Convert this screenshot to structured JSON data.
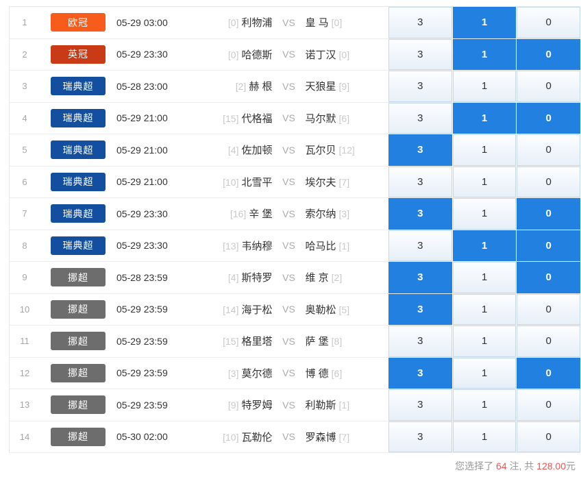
{
  "pick_labels": [
    "3",
    "1",
    "0"
  ],
  "labels": {
    "vs": "VS"
  },
  "colors": {
    "selected_cell": "#2280e1",
    "unselected_cell_border": "#c6d9ec",
    "summary_highlight": "#f05353",
    "league_ouguan": "#f85c1d",
    "league_yingguan": "#c93a17",
    "league_ruidianchao": "#134f9e",
    "league_nuochao": "#6d6d6d"
  },
  "summary": {
    "prefix": "您选择了",
    "bets": "64",
    "mid": "注, 共",
    "amount": "128.00",
    "suffix": "元"
  },
  "rows": [
    {
      "num": "1",
      "league": "欧冠",
      "league_color": "#f85c1d",
      "datetime": "05-29 03:00",
      "home_rank": "[0]",
      "home": "利物浦",
      "away": "皇 马",
      "away_rank": "[0]",
      "picks": [
        false,
        true,
        false
      ]
    },
    {
      "num": "2",
      "league": "英冠",
      "league_color": "#c93a17",
      "datetime": "05-29 23:30",
      "home_rank": "[0]",
      "home": "哈德斯",
      "away": "诺丁汉",
      "away_rank": "[0]",
      "picks": [
        false,
        true,
        true
      ]
    },
    {
      "num": "3",
      "league": "瑞典超",
      "league_color": "#134f9e",
      "datetime": "05-28 23:00",
      "home_rank": "[2]",
      "home": "赫 根",
      "away": "天狼星",
      "away_rank": "[9]",
      "picks": [
        false,
        false,
        false
      ]
    },
    {
      "num": "4",
      "league": "瑞典超",
      "league_color": "#134f9e",
      "datetime": "05-29 21:00",
      "home_rank": "[15]",
      "home": "代格福",
      "away": "马尔默",
      "away_rank": "[6]",
      "picks": [
        false,
        true,
        true
      ]
    },
    {
      "num": "5",
      "league": "瑞典超",
      "league_color": "#134f9e",
      "datetime": "05-29 21:00",
      "home_rank": "[4]",
      "home": "佐加顿",
      "away": "瓦尔贝",
      "away_rank": "[12]",
      "picks": [
        true,
        false,
        false
      ]
    },
    {
      "num": "6",
      "league": "瑞典超",
      "league_color": "#134f9e",
      "datetime": "05-29 21:00",
      "home_rank": "[10]",
      "home": "北雪平",
      "away": "埃尔夫",
      "away_rank": "[7]",
      "picks": [
        false,
        false,
        false
      ]
    },
    {
      "num": "7",
      "league": "瑞典超",
      "league_color": "#134f9e",
      "datetime": "05-29 23:30",
      "home_rank": "[16]",
      "home": "辛 堡",
      "away": "索尔纳",
      "away_rank": "[3]",
      "picks": [
        true,
        false,
        true
      ]
    },
    {
      "num": "8",
      "league": "瑞典超",
      "league_color": "#134f9e",
      "datetime": "05-29 23:30",
      "home_rank": "[13]",
      "home": "韦纳穆",
      "away": "哈马比",
      "away_rank": "[1]",
      "picks": [
        false,
        true,
        true
      ]
    },
    {
      "num": "9",
      "league": "挪超",
      "league_color": "#6d6d6d",
      "datetime": "05-28 23:59",
      "home_rank": "[4]",
      "home": "斯特罗",
      "away": "维 京",
      "away_rank": "[2]",
      "picks": [
        true,
        false,
        true
      ]
    },
    {
      "num": "10",
      "league": "挪超",
      "league_color": "#6d6d6d",
      "datetime": "05-29 23:59",
      "home_rank": "[14]",
      "home": "海于松",
      "away": "奥勒松",
      "away_rank": "[5]",
      "picks": [
        true,
        false,
        false
      ]
    },
    {
      "num": "11",
      "league": "挪超",
      "league_color": "#6d6d6d",
      "datetime": "05-29 23:59",
      "home_rank": "[15]",
      "home": "格里塔",
      "away": "萨 堡",
      "away_rank": "[8]",
      "picks": [
        false,
        false,
        false
      ]
    },
    {
      "num": "12",
      "league": "挪超",
      "league_color": "#6d6d6d",
      "datetime": "05-29 23:59",
      "home_rank": "[3]",
      "home": "莫尔德",
      "away": "博 德",
      "away_rank": "[6]",
      "picks": [
        true,
        false,
        true
      ]
    },
    {
      "num": "13",
      "league": "挪超",
      "league_color": "#6d6d6d",
      "datetime": "05-29 23:59",
      "home_rank": "[9]",
      "home": "特罗姆",
      "away": "利勒斯",
      "away_rank": "[1]",
      "picks": [
        false,
        false,
        false
      ]
    },
    {
      "num": "14",
      "league": "挪超",
      "league_color": "#6d6d6d",
      "datetime": "05-30 02:00",
      "home_rank": "[10]",
      "home": "瓦勒伦",
      "away": "罗森博",
      "away_rank": "[7]",
      "picks": [
        false,
        false,
        false
      ]
    }
  ]
}
